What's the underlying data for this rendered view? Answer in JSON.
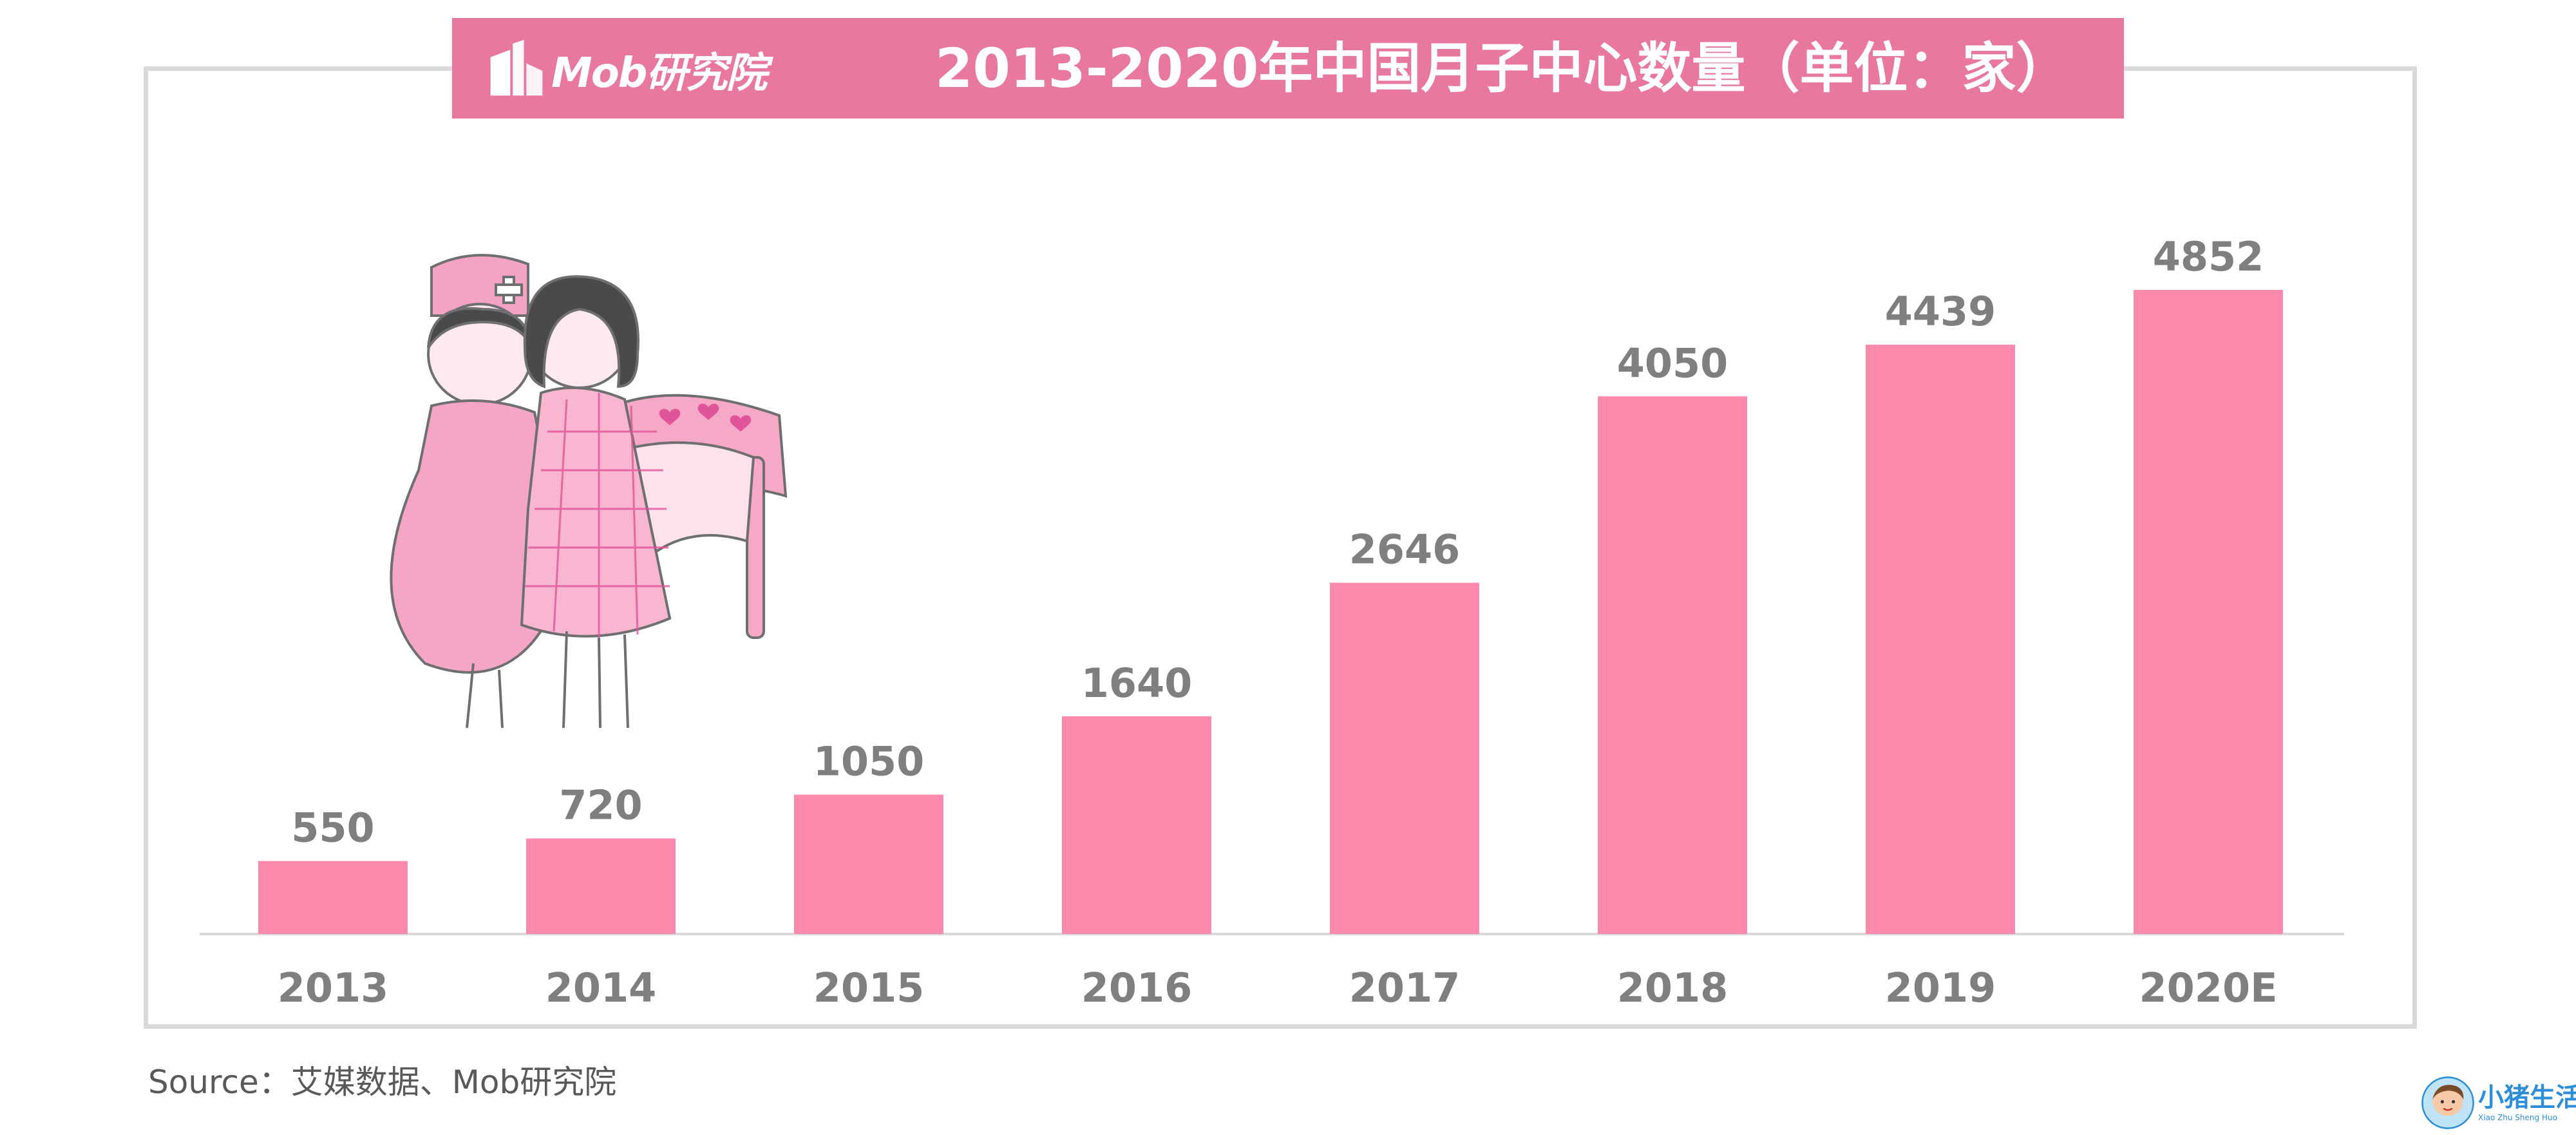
{
  "header": {
    "logo_text": "Mob研究院",
    "title": "2013-2020年中国月子中心数量（单位：家）"
  },
  "colors": {
    "bar": "#fc8aad",
    "header_band": "#e8789c",
    "label_text": "#7f7f7f",
    "frame": "#d9d9d9"
  },
  "chart_data": {
    "type": "bar",
    "title": "2013-2020年中国月子中心数量（单位：家）",
    "unit": "家",
    "categories": [
      "2013",
      "2014",
      "2015",
      "2016",
      "2017",
      "2018",
      "2019",
      "2020E"
    ],
    "values": [
      550,
      720,
      1050,
      1640,
      2646,
      4050,
      4439,
      4852
    ],
    "data_labels": [
      "550",
      "720",
      "1050",
      "1640",
      "2646",
      "4050",
      "4439",
      "4852"
    ],
    "ylim": [
      0,
      5000
    ],
    "grid": false,
    "legend": "none"
  },
  "footer": {
    "source": "Source：艾媒数据、Mob研究院"
  },
  "watermark": {
    "text": "小猪生活",
    "subtext": "Xiao Zhu Sheng Huo"
  },
  "icons": {
    "logo": "mob-building-logo-icon",
    "illustration": "nurse-and-mother-with-crib-illustration",
    "watermark": "pig-mascot-icon"
  }
}
